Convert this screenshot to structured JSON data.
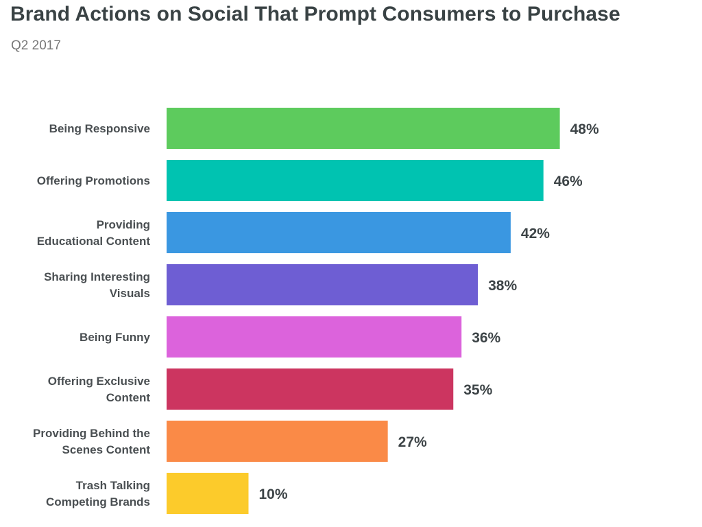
{
  "chart_data": {
    "type": "bar",
    "orientation": "horizontal",
    "title": "Brand Actions on Social That Prompt Consumers to Purchase",
    "subtitle": "Q2 2017",
    "xlabel": "",
    "ylabel": "",
    "unit": "%",
    "xlim": [
      0,
      50
    ],
    "grid": false,
    "categories": [
      [
        "Being Responsive"
      ],
      [
        "Offering Promotions"
      ],
      [
        "Providing",
        "Educational Content"
      ],
      [
        "Sharing Interesting",
        "Visuals"
      ],
      [
        "Being Funny"
      ],
      [
        "Offering Exclusive",
        "Content"
      ],
      [
        "Providing Behind the",
        "Scenes Content"
      ],
      [
        "Trash Talking",
        "Competing Brands"
      ]
    ],
    "values": [
      48,
      46,
      42,
      38,
      36,
      35,
      27,
      10
    ],
    "value_labels": [
      "48%",
      "46%",
      "42%",
      "38%",
      "36%",
      "35%",
      "27%",
      "10%"
    ],
    "colors": [
      "#5dcb5d",
      "#00c3b1",
      "#3a97e1",
      "#6e5ed3",
      "#dc63dc",
      "#cc3560",
      "#fa8a47",
      "#fccb2b"
    ]
  }
}
